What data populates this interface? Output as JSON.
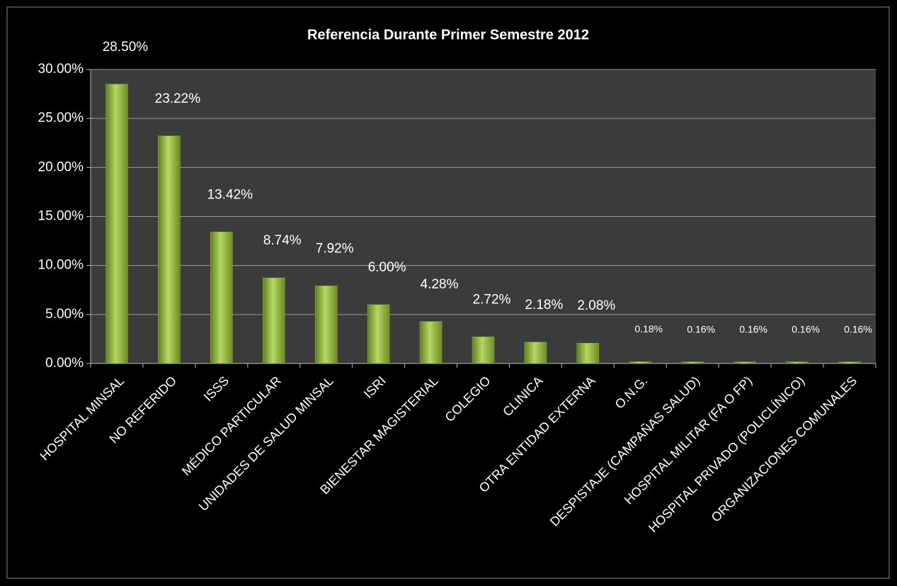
{
  "chart_data": {
    "type": "bar",
    "title": "Referencia Durante Primer Semestre 2012",
    "categories": [
      "HOSPITAL MINSAL",
      "NO REFERIDO",
      "ISSS",
      "MÉDICO PARTICULAR",
      "UNIDADES DE SALUD MINSAL",
      "ISRI",
      "BIENESTAR MAGISTERIAL",
      "COLEGIO",
      "CLINICA",
      "OTRA ENTIDAD EXTERNA",
      "O.N.G.",
      "DESPISTAJE (CAMPAÑAS SALUD)",
      "HOSPITAL MILITAR (FA O FP)",
      "HOSPITAL PRIVADO (POLICLÍNICO)",
      "ORGANIZACIONES COMUNALES"
    ],
    "values": [
      28.5,
      23.22,
      13.42,
      8.74,
      7.92,
      6.0,
      4.28,
      2.72,
      2.18,
      2.08,
      0.18,
      0.16,
      0.16,
      0.16,
      0.16
    ],
    "value_labels": [
      "28.50%",
      "23.22%",
      "13.42%",
      "8.74%",
      "7.92%",
      "6.00%",
      "4.28%",
      "2.72%",
      "2.18%",
      "2.08%",
      "0.18%",
      "0.16%",
      "0.16%",
      "0.16%",
      "0.16%"
    ],
    "color": "#8db33a",
    "ylim": [
      0,
      30
    ],
    "yticks": [
      {
        "value": 0,
        "label": "0.00%"
      },
      {
        "value": 5,
        "label": "5.00%"
      },
      {
        "value": 10,
        "label": "10.00%"
      },
      {
        "value": 15,
        "label": "15.00%"
      },
      {
        "value": 20,
        "label": "20.00%"
      },
      {
        "value": 25,
        "label": "25.00%"
      },
      {
        "value": 30,
        "label": "30.00%"
      }
    ],
    "grid": true
  }
}
